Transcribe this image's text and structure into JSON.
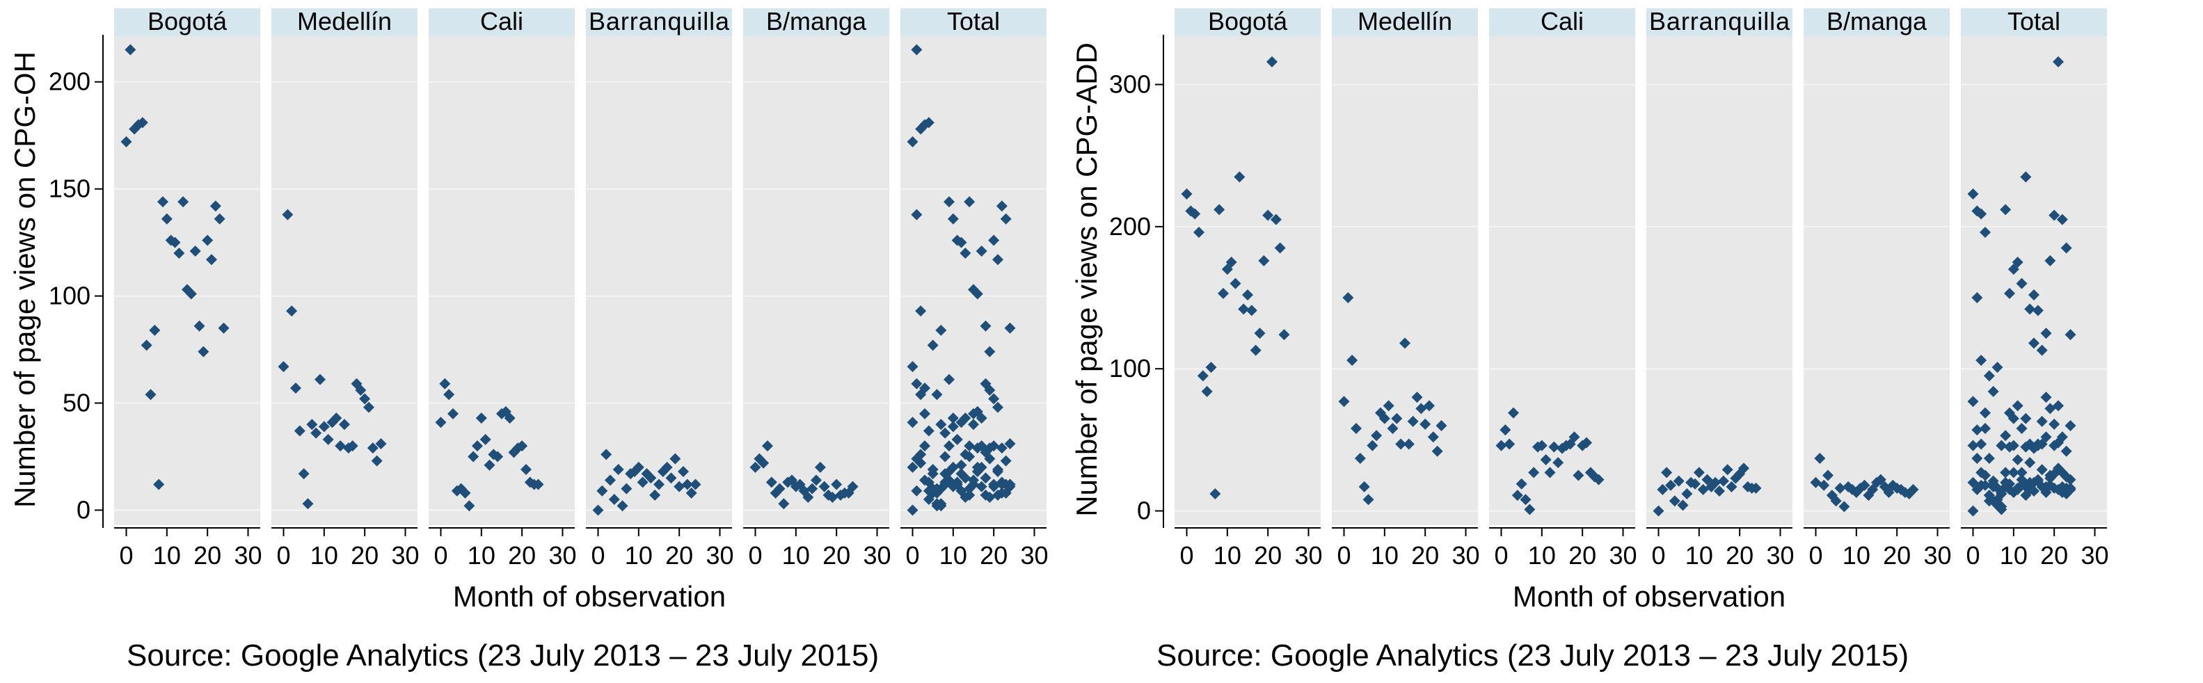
{
  "chart_data": [
    {
      "type": "scatter",
      "ylabel": "Number of page views on CPG-OH",
      "xlabel": "Month of observation",
      "source": "Source: Google Analytics (23 July 2013 – 23 July 2015)",
      "xlim": [
        -3,
        33
      ],
      "ylim": [
        -7,
        222
      ],
      "xticks": [
        0,
        10,
        20,
        30
      ],
      "yticks": [
        0,
        50,
        100,
        150,
        200
      ],
      "grid": true,
      "marker_color": "#1f4e79",
      "panels": [
        {
          "name": "Bogotá",
          "x": [
            0,
            1,
            2,
            3,
            4,
            5,
            6,
            7,
            8,
            9,
            10,
            11,
            12,
            13,
            14,
            15,
            16,
            17,
            18,
            19,
            20,
            21,
            22,
            23,
            24
          ],
          "y": [
            172,
            215,
            178,
            180,
            181,
            77,
            54,
            84,
            12,
            144,
            136,
            126,
            125,
            120,
            144,
            103,
            101,
            121,
            86,
            74,
            126,
            117,
            142,
            136,
            85
          ]
        },
        {
          "name": "Medellín",
          "x": [
            0,
            1,
            2,
            3,
            4,
            5,
            6,
            7,
            8,
            9,
            10,
            11,
            12,
            13,
            14,
            15,
            16,
            17,
            18,
            19,
            20,
            21,
            22,
            23,
            24
          ],
          "y": [
            67,
            138,
            93,
            57,
            37,
            17,
            3,
            40,
            36,
            61,
            39,
            33,
            41,
            43,
            30,
            40,
            29,
            30,
            59,
            56,
            52,
            48,
            29,
            23,
            31
          ]
        },
        {
          "name": "Cali",
          "x": [
            0,
            1,
            2,
            3,
            4,
            5,
            6,
            7,
            8,
            9,
            10,
            11,
            12,
            13,
            14,
            15,
            16,
            17,
            18,
            19,
            20,
            21,
            22,
            23,
            24
          ],
          "y": [
            41,
            59,
            54,
            45,
            9,
            10,
            8,
            2,
            25,
            30,
            43,
            33,
            21,
            26,
            25,
            45,
            46,
            43,
            27,
            29,
            30,
            19,
            13,
            12,
            12
          ]
        },
        {
          "name": "Barranquilla",
          "x": [
            0,
            1,
            2,
            3,
            4,
            5,
            6,
            7,
            8,
            9,
            10,
            11,
            12,
            13,
            14,
            15,
            16,
            17,
            18,
            19,
            20,
            21,
            22,
            23,
            24
          ],
          "y": [
            0,
            9,
            26,
            14,
            5,
            19,
            2,
            10,
            17,
            18,
            20,
            13,
            17,
            15,
            7,
            12,
            18,
            20,
            15,
            24,
            11,
            18,
            12,
            8,
            12
          ]
        },
        {
          "name": "B/manga",
          "x": [
            0,
            1,
            2,
            3,
            4,
            5,
            6,
            7,
            8,
            9,
            10,
            11,
            12,
            13,
            14,
            15,
            16,
            17,
            18,
            19,
            20,
            21,
            22,
            23,
            24
          ],
          "y": [
            20,
            24,
            22,
            30,
            13,
            8,
            10,
            3,
            13,
            14,
            11,
            12,
            9,
            6,
            10,
            14,
            20,
            11,
            7,
            6,
            12,
            7,
            8,
            8,
            11
          ]
        },
        {
          "name": "Total",
          "x": [
            0,
            1,
            2,
            3,
            4,
            5,
            6,
            7,
            8,
            9,
            10,
            11,
            12,
            13,
            14,
            15,
            16,
            17,
            18,
            19,
            20,
            21,
            22,
            23,
            24,
            0,
            1,
            2,
            3,
            4,
            5,
            6,
            7,
            8,
            9,
            10,
            11,
            12,
            13,
            14,
            15,
            16,
            17,
            18,
            19,
            20,
            21,
            22,
            23,
            24,
            0,
            1,
            2,
            3,
            4,
            5,
            6,
            7,
            8,
            9,
            10,
            11,
            12,
            13,
            14,
            15,
            16,
            17,
            18,
            19,
            20,
            21,
            22,
            23,
            24,
            0,
            1,
            2,
            3,
            4,
            5,
            6,
            7,
            8,
            9,
            10,
            11,
            12,
            13,
            14,
            15,
            16,
            17,
            18,
            19,
            20,
            21,
            22,
            23,
            24,
            0,
            1,
            2,
            3,
            4,
            5,
            6,
            7,
            8,
            9,
            10,
            11,
            12,
            13,
            14,
            15,
            16,
            17,
            18,
            19,
            20,
            21,
            22,
            23,
            24
          ],
          "y": [
            172,
            215,
            178,
            180,
            181,
            77,
            54,
            84,
            12,
            144,
            136,
            126,
            125,
            120,
            144,
            103,
            101,
            121,
            86,
            74,
            126,
            117,
            142,
            136,
            85,
            67,
            138,
            93,
            57,
            37,
            17,
            3,
            40,
            36,
            61,
            39,
            33,
            41,
            43,
            30,
            40,
            29,
            30,
            59,
            56,
            52,
            48,
            29,
            23,
            31,
            41,
            59,
            54,
            45,
            9,
            10,
            8,
            2,
            25,
            30,
            43,
            33,
            21,
            26,
            25,
            45,
            46,
            43,
            27,
            29,
            30,
            19,
            13,
            12,
            12,
            0,
            9,
            26,
            14,
            5,
            19,
            2,
            10,
            17,
            18,
            20,
            13,
            17,
            15,
            7,
            12,
            18,
            20,
            15,
            24,
            11,
            18,
            12,
            8,
            12,
            20,
            24,
            22,
            30,
            13,
            8,
            10,
            3,
            13,
            14,
            11,
            12,
            9,
            6,
            10,
            14,
            20,
            11,
            7,
            6,
            12,
            7,
            8,
            8,
            11
          ]
        }
      ]
    },
    {
      "type": "scatter",
      "ylabel": "Number of page views on CPG-ADD",
      "xlabel": "Month of observation",
      "source": "Source: Google Analytics (23 July 2013 – 23 July 2015)",
      "xlim": [
        -3,
        33
      ],
      "ylim": [
        -10,
        335
      ],
      "xticks": [
        0,
        10,
        20,
        30
      ],
      "yticks": [
        0,
        100,
        200,
        300
      ],
      "grid": true,
      "marker_color": "#1f4e79",
      "panels": [
        {
          "name": "Bogotá",
          "x": [
            0,
            1,
            2,
            3,
            4,
            5,
            6,
            7,
            8,
            9,
            10,
            11,
            12,
            13,
            14,
            15,
            16,
            17,
            18,
            19,
            20,
            21,
            22,
            23,
            24
          ],
          "y": [
            223,
            211,
            209,
            196,
            95,
            84,
            101,
            12,
            212,
            153,
            170,
            175,
            160,
            235,
            142,
            152,
            141,
            113,
            125,
            176,
            208,
            316,
            205,
            185,
            124
          ]
        },
        {
          "name": "Medellín",
          "x": [
            0,
            1,
            2,
            3,
            4,
            5,
            6,
            7,
            8,
            9,
            10,
            11,
            12,
            13,
            14,
            15,
            16,
            17,
            18,
            19,
            20,
            21,
            22,
            23,
            24
          ],
          "y": [
            77,
            150,
            106,
            58,
            37,
            17,
            8,
            46,
            53,
            69,
            65,
            74,
            58,
            65,
            47,
            118,
            47,
            63,
            80,
            72,
            61,
            74,
            52,
            42,
            60
          ]
        },
        {
          "name": "Cali",
          "x": [
            0,
            1,
            2,
            3,
            4,
            5,
            6,
            7,
            8,
            9,
            10,
            11,
            12,
            13,
            14,
            15,
            16,
            17,
            18,
            19,
            20,
            21,
            22,
            23,
            24
          ],
          "y": [
            46,
            57,
            47,
            69,
            11,
            19,
            8,
            1,
            27,
            45,
            46,
            36,
            27,
            45,
            34,
            44,
            46,
            47,
            52,
            25,
            46,
            48,
            27,
            24,
            22
          ]
        },
        {
          "name": "Barranquilla",
          "x": [
            0,
            1,
            2,
            3,
            4,
            5,
            6,
            7,
            8,
            9,
            10,
            11,
            12,
            13,
            14,
            15,
            16,
            17,
            18,
            19,
            20,
            21,
            22,
            23,
            24
          ],
          "y": [
            0,
            15,
            27,
            18,
            7,
            21,
            4,
            12,
            20,
            19,
            27,
            15,
            22,
            17,
            20,
            14,
            21,
            29,
            17,
            23,
            26,
            30,
            17,
            16,
            16
          ]
        },
        {
          "name": "B/manga",
          "x": [
            0,
            1,
            2,
            3,
            4,
            5,
            6,
            7,
            8,
            9,
            10,
            11,
            12,
            13,
            14,
            15,
            16,
            17,
            18,
            19,
            20,
            21,
            22,
            23,
            24
          ],
          "y": [
            20,
            37,
            18,
            25,
            11,
            7,
            16,
            3,
            17,
            15,
            13,
            16,
            18,
            11,
            15,
            20,
            22,
            17,
            13,
            18,
            16,
            15,
            13,
            12,
            15
          ]
        },
        {
          "name": "Total",
          "x": [
            0,
            1,
            2,
            3,
            4,
            5,
            6,
            7,
            8,
            9,
            10,
            11,
            12,
            13,
            14,
            15,
            16,
            17,
            18,
            19,
            20,
            21,
            22,
            23,
            24,
            0,
            1,
            2,
            3,
            4,
            5,
            6,
            7,
            8,
            9,
            10,
            11,
            12,
            13,
            14,
            15,
            16,
            17,
            18,
            19,
            20,
            21,
            22,
            23,
            24,
            0,
            1,
            2,
            3,
            4,
            5,
            6,
            7,
            8,
            9,
            10,
            11,
            12,
            13,
            14,
            15,
            16,
            17,
            18,
            19,
            20,
            21,
            22,
            23,
            24,
            0,
            1,
            2,
            3,
            4,
            5,
            6,
            7,
            8,
            9,
            10,
            11,
            12,
            13,
            14,
            15,
            16,
            17,
            18,
            19,
            20,
            21,
            22,
            23,
            24,
            0,
            1,
            2,
            3,
            4,
            5,
            6,
            7,
            8,
            9,
            10,
            11,
            12,
            13,
            14,
            15,
            16,
            17,
            18,
            19,
            20,
            21,
            22,
            23,
            24
          ],
          "y": [
            223,
            211,
            209,
            196,
            95,
            84,
            101,
            12,
            212,
            153,
            170,
            175,
            160,
            235,
            142,
            152,
            141,
            113,
            125,
            176,
            208,
            316,
            205,
            185,
            124,
            77,
            150,
            106,
            58,
            37,
            17,
            8,
            46,
            53,
            69,
            65,
            74,
            58,
            65,
            47,
            118,
            47,
            63,
            80,
            72,
            61,
            74,
            52,
            42,
            60,
            46,
            57,
            47,
            69,
            11,
            19,
            8,
            1,
            27,
            45,
            46,
            36,
            27,
            45,
            34,
            44,
            46,
            47,
            52,
            25,
            46,
            48,
            27,
            24,
            22,
            0,
            15,
            27,
            18,
            7,
            21,
            4,
            12,
            20,
            19,
            27,
            15,
            22,
            17,
            20,
            14,
            21,
            29,
            17,
            23,
            26,
            30,
            17,
            16,
            16,
            20,
            37,
            18,
            25,
            11,
            7,
            16,
            3,
            17,
            15,
            13,
            16,
            18,
            11,
            15,
            20,
            22,
            17,
            13,
            18,
            16,
            15,
            13,
            12,
            15
          ]
        }
      ]
    }
  ]
}
